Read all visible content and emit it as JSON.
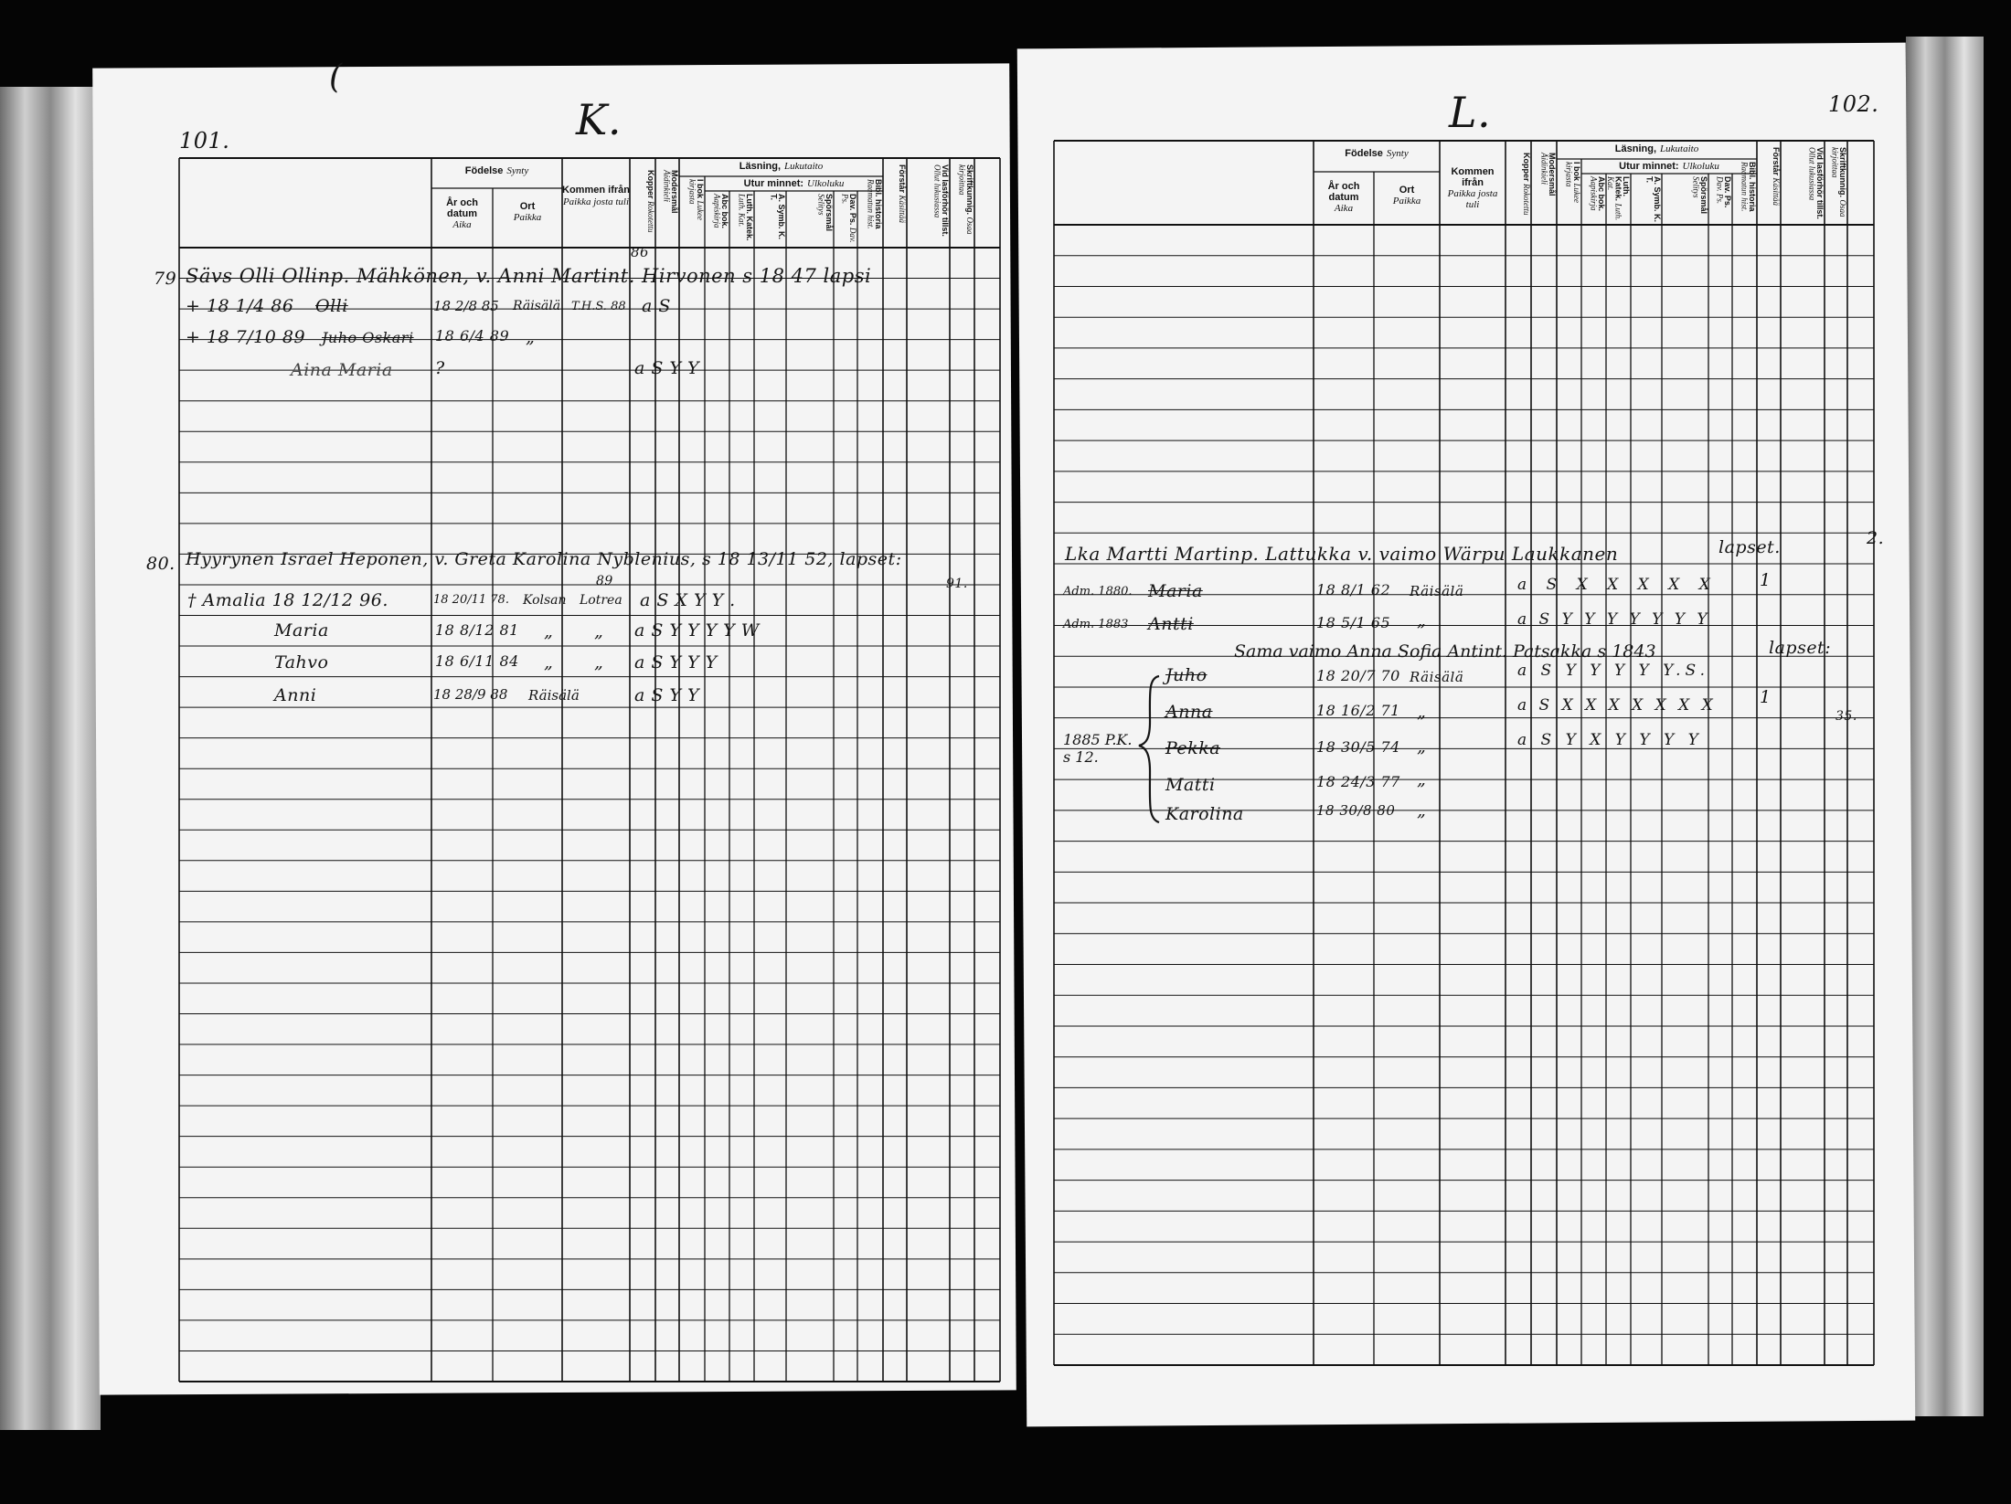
{
  "left_page": {
    "page_number": "101.",
    "letter": "K.",
    "corner_mark": "(",
    "headers": {
      "fodelse": "Födelse",
      "fodelse_fi": "Synty",
      "ar": "År och datum",
      "ar_fi": "Aika",
      "ort": "Ort",
      "ort_fi": "Paikka",
      "kommen": "Kommen ifrån",
      "kommen_fi": "Paikka josta tuli",
      "kopper": "Kopper",
      "kopper_fi": "Rokotettu",
      "modersmal": "Modersmål",
      "modersmal_fi": "Äidinkieli",
      "lasning": "Läsning,",
      "lasning_fi": "Lukutaito",
      "i_bok": "I bok",
      "i_bok_fi": "Lukee kirjasta",
      "utur": "Utur minnet:",
      "utur_fi": "Ulkoluku",
      "abc": "Abc bok.",
      "abc_fi": "Aapiskirja",
      "luth": "Luth. Katek.",
      "luth_fi": "Luth. Kat.",
      "symb": "A. Symb. K. T.",
      "sporsmal": "Spörsmål",
      "sporsmal_fi": "Selitys",
      "dav": "Dav. Ps.",
      "dav_fi": "Dav. Ps.",
      "bibl": "Bibl. historia",
      "bibl_fi": "Raamatun hist.",
      "forstar": "Förstår",
      "forstar_fi": "Käsittää",
      "vid": "Vid lasförhör tillst.",
      "vid_fi": "Ollut lukusiassa",
      "skrift": "Skriftkunnig.",
      "skrift_fi": "Osaa kirjoittaa"
    },
    "entries": [
      {
        "no": "79",
        "line": "Sävs Olli Ollinp. Mähkönen, v. Anni Martint. Hirvonen s 18 47 lapsi",
        "above": "86"
      },
      {
        "date": "+ 18 1/4 86",
        "name": "Olli",
        "born": "18 2/8 85",
        "place": "Räisälä",
        "from": "T.H.S. 88",
        "marks": "a S"
      },
      {
        "date": "+ 18 7/10 89",
        "name": "Juho Oskari",
        "born": "18 6/4 89",
        "place": "„"
      },
      {
        "name": "Aina Maria",
        "born": "?",
        "marks": "a S Y Y"
      },
      {
        "no": "80.",
        "line": "Hyyrynen Israel Heponen, v. Greta Karolina Nyblenius, s 18 13/11 52, lapset:",
        "above": "89",
        "note": "91."
      },
      {
        "name": "† Amalia 18 12/12 96.",
        "born": "18 20/11 78.",
        "place": "Kolsan",
        "from": "Lotrea",
        "marks": "a S X Y Y ."
      },
      {
        "name": "Maria",
        "born": "18 8/12 81",
        "place": "„",
        "from": "„",
        "marks": "a S Y Y Y Y W"
      },
      {
        "name": "Tahvo",
        "born": "18 6/11 84",
        "place": "„",
        "from": "„",
        "marks": "a S Y Y Y"
      },
      {
        "name": "Anni",
        "born": "18 28/9 88",
        "place": "Räisälä",
        "marks": "a S Y Y"
      }
    ]
  },
  "right_page": {
    "page_number": "102.",
    "letter": "L.",
    "side_mark": "2.",
    "entries": [
      {
        "line": "Lka Martti Martinp. Lattukka v. vaimo Wärpu Laukkanen",
        "note": "lapset."
      },
      {
        "pre": "Adm. 1880.",
        "name": "Maria",
        "born": "18 8/1 62",
        "place": "Räisälä",
        "marks": "a S X X X X X",
        "extra": "1"
      },
      {
        "pre": "Adm. 1883",
        "name": "Antti",
        "born": "18 5/1 65",
        "place": "„",
        "marks": "a S Y Y Y Y Y Y Y"
      },
      {
        "line": "Sama vaimo Anna Sofia Antint. Patsakka s 1843",
        "note": "lapset:"
      },
      {
        "name": "Juho",
        "born": "18 20/7 70",
        "place": "Räisälä",
        "marks": "a S Y Y Y Y Y.S."
      },
      {
        "name": "Anna",
        "born": "18 16/2 71",
        "place": "„",
        "marks": "a S X X X X X X X",
        "extra": "1",
        "extra2": "35."
      },
      {
        "pre": "1885 P.K. s 12.",
        "name": "Pekka",
        "born": "18 30/5 74",
        "place": "„",
        "marks": "a S Y X Y Y Y Y"
      },
      {
        "name": "Matti",
        "born": "18 24/3 77",
        "place": "„"
      },
      {
        "name": "Karolina",
        "born": "18 30/8 80",
        "place": "„"
      }
    ]
  }
}
